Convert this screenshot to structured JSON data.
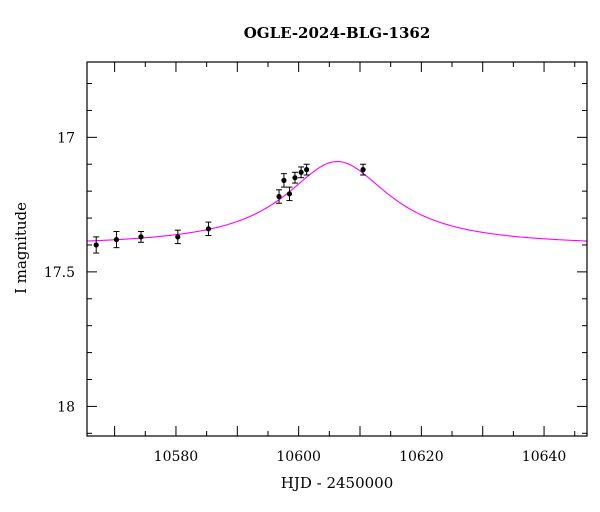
{
  "chart_data": {
    "type": "scatter",
    "title": "OGLE-2024-BLG-1362",
    "xlabel": "HJD - 2450000",
    "ylabel": "I magnitude",
    "xlim": [
      10565.5,
      10647
    ],
    "ylim": [
      18.11,
      16.72
    ],
    "y_inverted": true,
    "grid": false,
    "x_ticks": {
      "major_labeled": [
        10580,
        10600,
        10620,
        10640
      ],
      "labels": [
        "10580",
        "10600",
        "10620",
        "10640"
      ]
    },
    "y_ticks": {
      "major_labeled": [
        17,
        17.5,
        18
      ],
      "labels": [
        "17",
        "17.5",
        "18"
      ]
    },
    "colors": {
      "data": "#000000",
      "model": "#ff00ff",
      "frame": "#000000"
    },
    "series": [
      {
        "type": "scatter_errorbar",
        "points": [
          {
            "x": 10567.0,
            "y": 17.4,
            "err": 0.03
          },
          {
            "x": 10570.3,
            "y": 17.38,
            "err": 0.03
          },
          {
            "x": 10574.3,
            "y": 17.37,
            "err": 0.02
          },
          {
            "x": 10580.3,
            "y": 17.37,
            "err": 0.025
          },
          {
            "x": 10585.3,
            "y": 17.34,
            "err": 0.025
          },
          {
            "x": 10596.8,
            "y": 17.22,
            "err": 0.025
          },
          {
            "x": 10597.6,
            "y": 17.16,
            "err": 0.025
          },
          {
            "x": 10598.5,
            "y": 17.21,
            "err": 0.025
          },
          {
            "x": 10599.4,
            "y": 17.15,
            "err": 0.02
          },
          {
            "x": 10600.4,
            "y": 17.13,
            "err": 0.02
          },
          {
            "x": 10601.3,
            "y": 17.12,
            "err": 0.02
          },
          {
            "x": 10610.5,
            "y": 17.12,
            "err": 0.02
          }
        ]
      },
      {
        "type": "line",
        "model": {
          "t0": 10606.3,
          "peak": 17.09,
          "base": 17.405,
          "tau": 10.5
        }
      }
    ]
  }
}
